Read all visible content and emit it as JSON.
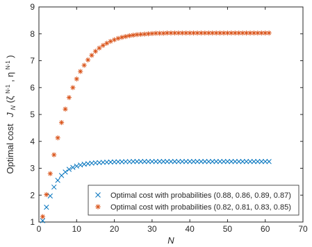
{
  "chart_data": {
    "type": "scatter",
    "title": "",
    "xlabel": "N",
    "ylabel_prefix": "Optimal cost",
    "ylabel_math": "J",
    "ylabel_sub": "N",
    "ylabel_args": "(ζ",
    "ylabel_sup1": "^N-1",
    "ylabel_mid": ", η",
    "ylabel_sup2": "^N-1",
    "ylabel_end": ")",
    "xlim": [
      0,
      70
    ],
    "ylim": [
      1,
      9
    ],
    "xticks": [
      "0",
      "10",
      "20",
      "30",
      "40",
      "50",
      "60",
      "70"
    ],
    "yticks": [
      "1",
      "2",
      "3",
      "4",
      "5",
      "6",
      "7",
      "8",
      "9"
    ],
    "grid": false,
    "legend_position": "bottom-right",
    "series": [
      {
        "name": "Optimal cost with probabilities (0.88, 0.86, 0.89, 0.87)",
        "marker": "x",
        "color": "#0072BD",
        "x": [
          1,
          2,
          3,
          4,
          5,
          6,
          7,
          8,
          9,
          10,
          11,
          12,
          13,
          14,
          15,
          16,
          17,
          18,
          19,
          20,
          21,
          22,
          23,
          24,
          25,
          26,
          27,
          28,
          29,
          30,
          31,
          32,
          33,
          34,
          35,
          36,
          37,
          38,
          39,
          40,
          41,
          42,
          43,
          44,
          45,
          46,
          47,
          48,
          49,
          50,
          51,
          52,
          53,
          54,
          55,
          56,
          57,
          58,
          59,
          60,
          61
        ],
        "y": [
          1.05,
          1.55,
          1.97,
          2.3,
          2.55,
          2.73,
          2.86,
          2.96,
          3.03,
          3.08,
          3.12,
          3.15,
          3.17,
          3.19,
          3.2,
          3.21,
          3.22,
          3.225,
          3.23,
          3.235,
          3.24,
          3.24,
          3.245,
          3.245,
          3.25,
          3.25,
          3.25,
          3.25,
          3.25,
          3.25,
          3.25,
          3.25,
          3.25,
          3.25,
          3.25,
          3.25,
          3.25,
          3.25,
          3.25,
          3.25,
          3.25,
          3.25,
          3.25,
          3.25,
          3.25,
          3.25,
          3.25,
          3.25,
          3.25,
          3.25,
          3.25,
          3.25,
          3.25,
          3.25,
          3.25,
          3.25,
          3.25,
          3.25,
          3.25,
          3.25,
          3.25
        ]
      },
      {
        "name": "Optimal cost with probabilities (0.82, 0.81, 0.83, 0.85)",
        "marker": "asterisk",
        "color": "#D95319",
        "x": [
          1,
          2,
          3,
          4,
          5,
          6,
          7,
          8,
          9,
          10,
          11,
          12,
          13,
          14,
          15,
          16,
          17,
          18,
          19,
          20,
          21,
          22,
          23,
          24,
          25,
          26,
          27,
          28,
          29,
          30,
          31,
          32,
          33,
          34,
          35,
          36,
          37,
          38,
          39,
          40,
          41,
          42,
          43,
          44,
          45,
          46,
          47,
          48,
          49,
          50,
          51,
          52,
          53,
          54,
          55,
          56,
          57,
          58,
          59,
          60,
          61
        ],
        "y": [
          1.2,
          2.02,
          2.8,
          3.5,
          4.13,
          4.7,
          5.2,
          5.63,
          6.0,
          6.32,
          6.6,
          6.83,
          7.03,
          7.2,
          7.35,
          7.47,
          7.57,
          7.65,
          7.72,
          7.78,
          7.83,
          7.87,
          7.9,
          7.93,
          7.95,
          7.97,
          7.98,
          7.99,
          8.0,
          8.01,
          8.02,
          8.02,
          8.02,
          8.03,
          8.03,
          8.03,
          8.03,
          8.03,
          8.03,
          8.03,
          8.03,
          8.03,
          8.03,
          8.03,
          8.03,
          8.03,
          8.03,
          8.03,
          8.03,
          8.03,
          8.03,
          8.03,
          8.03,
          8.03,
          8.03,
          8.03,
          8.03,
          8.03,
          8.03,
          8.03,
          8.03
        ]
      }
    ]
  }
}
